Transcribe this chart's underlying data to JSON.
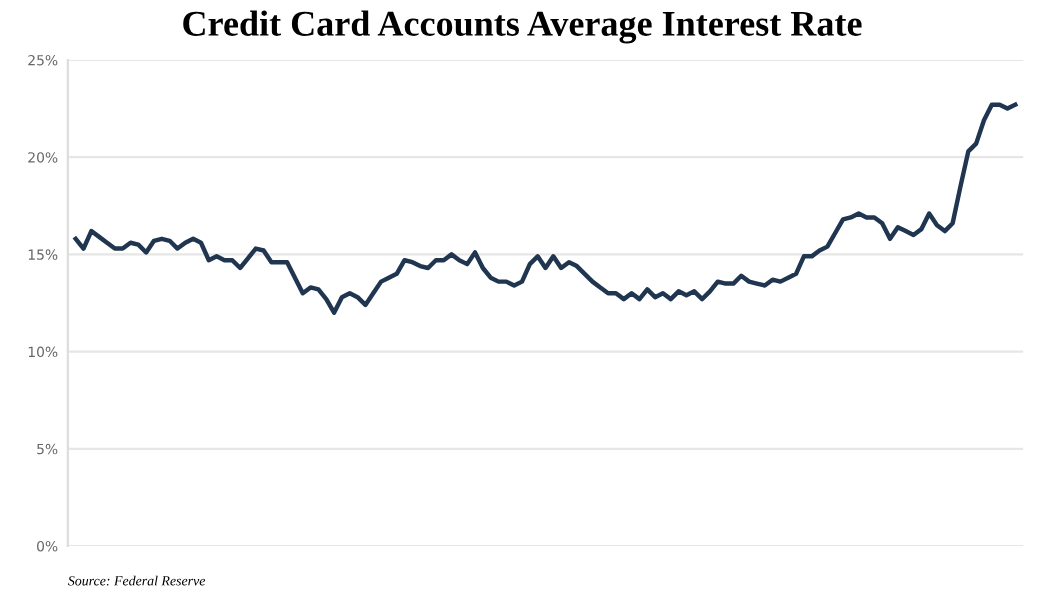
{
  "chart_data": {
    "type": "line",
    "title": "Credit Card Accounts Average Interest Rate",
    "categories": [
      null,
      null,
      null,
      null,
      null,
      null,
      null,
      null,
      null,
      null,
      null,
      null,
      null,
      null,
      null,
      null,
      null,
      null,
      null,
      null,
      null,
      null,
      null,
      null,
      null,
      null,
      null,
      null,
      null,
      null,
      null,
      null,
      null,
      null,
      null,
      null,
      null,
      null,
      null,
      null,
      null,
      null,
      null,
      null,
      null,
      null,
      null,
      null,
      null,
      null,
      null,
      null,
      null,
      null,
      null,
      null,
      null,
      null,
      null,
      null,
      null,
      null,
      null,
      null,
      null,
      null,
      null,
      null,
      null,
      null,
      null,
      null,
      null,
      null,
      null,
      null,
      null,
      null,
      null,
      null,
      null,
      null,
      null,
      null,
      null,
      null,
      null,
      null,
      null,
      null,
      null,
      null,
      null,
      null,
      null,
      null,
      null,
      null,
      null,
      null,
      null,
      null,
      null,
      null,
      null,
      null,
      null,
      null,
      null,
      null,
      null,
      null,
      null,
      null,
      null,
      null,
      null,
      null,
      null,
      null,
      null
    ],
    "series": [
      {
        "color": "#1f3550",
        "values": [
          15.8,
          15.3,
          16.2,
          15.9,
          15.6,
          15.3,
          15.3,
          15.6,
          15.5,
          15.1,
          15.7,
          15.8,
          15.7,
          15.3,
          15.6,
          15.8,
          15.6,
          14.7,
          14.9,
          14.7,
          14.7,
          14.3,
          14.8,
          15.3,
          15.2,
          14.6,
          14.6,
          14.6,
          13.8,
          13.0,
          13.3,
          13.2,
          12.7,
          12.0,
          12.8,
          13.0,
          12.8,
          12.4,
          13.0,
          13.6,
          13.8,
          14.0,
          14.7,
          14.6,
          14.4,
          14.3,
          14.7,
          14.7,
          15.0,
          14.7,
          14.5,
          15.1,
          14.3,
          13.8,
          13.6,
          13.6,
          13.4,
          13.6,
          14.5,
          14.9,
          14.3,
          14.9,
          14.3,
          14.6,
          14.4,
          14.0,
          13.6,
          13.3,
          13.0,
          13.0,
          12.7,
          13.0,
          12.7,
          13.2,
          12.8,
          13.0,
          12.7,
          13.1,
          12.9,
          13.1,
          12.7,
          13.1,
          13.6,
          13.5,
          13.5,
          13.9,
          13.6,
          13.5,
          13.4,
          13.7,
          13.6,
          13.8,
          14.0,
          14.9,
          14.9,
          15.2,
          15.4,
          16.1,
          16.8,
          16.9,
          17.1,
          16.9,
          16.9,
          16.6,
          15.8,
          16.4,
          16.2,
          16.0,
          16.3,
          17.1,
          16.5,
          16.2,
          16.6,
          18.5,
          20.3,
          20.7,
          21.9,
          22.7,
          22.7,
          22.5,
          22.7
        ]
      }
    ],
    "ylim": [
      0,
      25
    ],
    "yticks": [
      {
        "value": 0,
        "label": "0%"
      },
      {
        "value": 5,
        "label": "5%"
      },
      {
        "value": 10,
        "label": "10%"
      },
      {
        "value": 15,
        "label": "15%"
      },
      {
        "value": 20,
        "label": "20%"
      },
      {
        "value": 25,
        "label": "25%"
      }
    ],
    "grid": "y",
    "tick_labels": "y",
    "legend": false,
    "annotations": [
      "Source: Federal Reserve"
    ]
  }
}
